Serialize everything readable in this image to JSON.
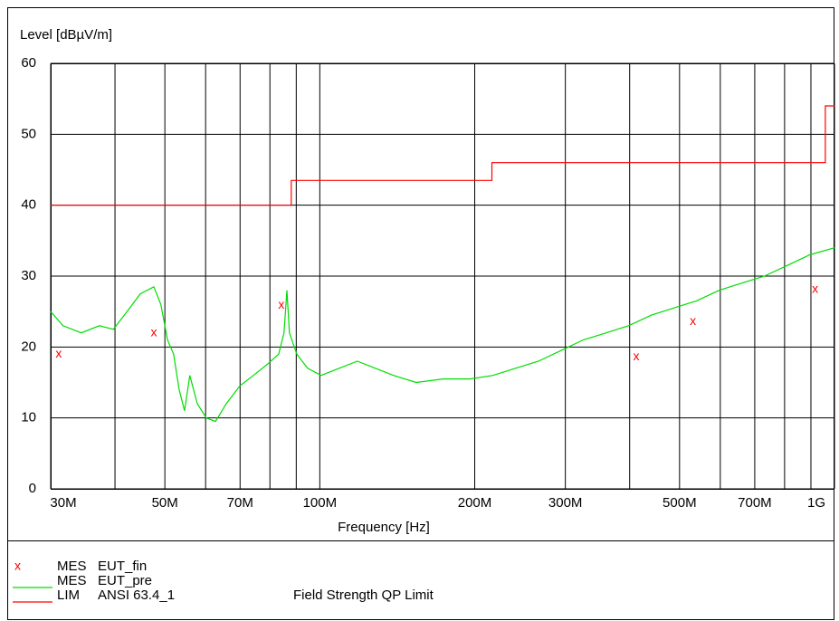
{
  "chart_data": {
    "type": "line",
    "ylabel": "Level [dBµV/m]",
    "xlabel": "Frequency [Hz]",
    "xscale": "log",
    "xlim": [
      30000000,
      1000000000
    ],
    "ylim": [
      0,
      60
    ],
    "yticks": [
      0,
      10,
      20,
      30,
      40,
      50,
      60
    ],
    "xticks": [
      {
        "value": 30000000,
        "label": "30M"
      },
      {
        "value": 50000000,
        "label": "50M"
      },
      {
        "value": 70000000,
        "label": "70M"
      },
      {
        "value": 100000000,
        "label": "100M"
      },
      {
        "value": 200000000,
        "label": "200M"
      },
      {
        "value": 300000000,
        "label": "300M"
      },
      {
        "value": 500000000,
        "label": "500M"
      },
      {
        "value": 700000000,
        "label": "700M"
      },
      {
        "value": 1000000000,
        "label": "1G"
      }
    ],
    "xminor_ticks": [
      40000000,
      60000000,
      80000000,
      90000000,
      400000000,
      600000000,
      800000000,
      900000000
    ],
    "grid": true,
    "series": [
      {
        "group": "MES",
        "name": "EUT_fin",
        "kind": "scatter",
        "marker": "x",
        "color": "#ff0000",
        "x": [
          31100000,
          47600000,
          84200000,
          412000000,
          531000000,
          917000000
        ],
        "values": [
          19.0,
          22.0,
          25.9,
          18.6,
          23.6,
          28.1
        ]
      },
      {
        "group": "MES",
        "name": "EUT_pre",
        "kind": "line",
        "color": "#00dd00",
        "x": [
          30000000,
          31700000,
          34400000,
          37300000,
          39700000,
          42200000,
          44800000,
          47600000,
          49100000,
          50600000,
          52000000,
          53300000,
          54600000,
          55900000,
          57800000,
          60200000,
          62700000,
          65800000,
          69900000,
          74300000,
          78900000,
          83200000,
          85200000,
          86300000,
          87300000,
          90200000,
          94700000,
          100600000,
          109100000,
          118300000,
          128200000,
          139100000,
          153900000,
          173700000,
          196000000,
          217000000,
          240000000,
          266000000,
          294000000,
          325000000,
          360000000,
          398000000,
          441000000,
          487000000,
          539000000,
          597000000,
          660000000,
          731000000,
          809000000,
          895000000,
          1000000000
        ],
        "values": [
          25,
          23,
          22,
          23,
          22.5,
          25,
          27.5,
          28.5,
          26,
          21,
          19,
          14,
          11,
          16,
          12,
          10,
          9.5,
          12,
          14.5,
          16,
          17.5,
          19,
          22,
          28,
          22,
          19,
          17,
          16,
          17,
          18,
          17,
          16,
          15,
          15.5,
          15.5,
          16,
          17,
          18,
          19.5,
          21,
          22,
          23,
          24.5,
          25.5,
          26.5,
          28,
          29,
          30,
          31.5,
          33,
          34
        ]
      },
      {
        "group": "LIM",
        "name": "ANSI 63.4_1",
        "description": "Field Strength QP Limit",
        "kind": "line",
        "color": "#ff0000",
        "x": [
          30000000,
          88000000,
          88000000,
          216000000,
          216000000,
          960000000,
          960000000,
          1000000000
        ],
        "values": [
          40,
          40,
          43.5,
          43.5,
          46,
          46,
          54,
          54
        ]
      }
    ]
  }
}
